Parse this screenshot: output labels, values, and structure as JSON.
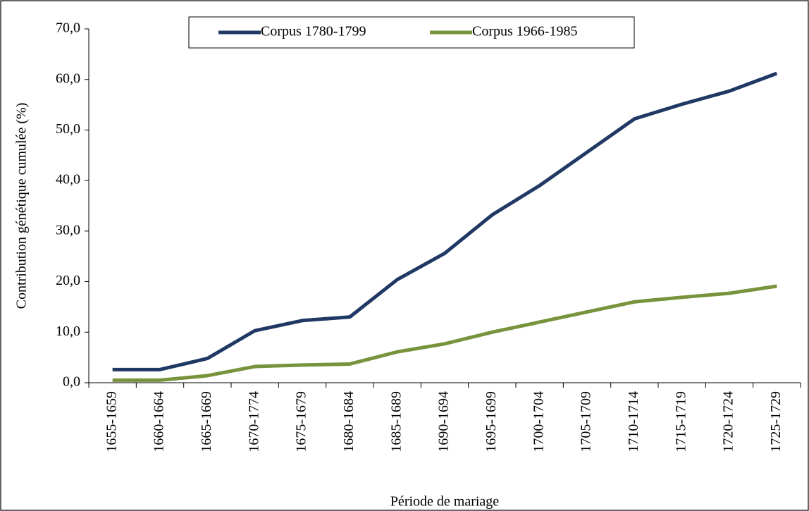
{
  "chart_data": {
    "type": "line",
    "x_label": "Période de mariage",
    "y_label": "Contribution génétique cumulée (%)",
    "categories": [
      "1655-1659",
      "1660-1664",
      "1665-1669",
      "1670-1774",
      "1675-1679",
      "1680-1684",
      "1685-1689",
      "1690-1694",
      "1695-1699",
      "1700-1704",
      "1705-1709",
      "1710-1714",
      "1715-1719",
      "1720-1724",
      "1725-1729"
    ],
    "series": [
      {
        "name": "Corpus 1780-1799",
        "color": "#1f3864",
        "values": [
          2.6,
          2.6,
          4.8,
          10.3,
          12.3,
          13.0,
          20.4,
          25.6,
          33.2,
          39.0,
          45.6,
          52.2,
          55.1,
          57.7,
          61.2
        ]
      },
      {
        "name": "Corpus 1966-1985",
        "color": "#77933c",
        "values": [
          0.5,
          0.5,
          1.4,
          3.2,
          3.5,
          3.7,
          6.1,
          7.7,
          10.0,
          12.0,
          14.0,
          16.0,
          16.9,
          17.7,
          19.1
        ]
      }
    ],
    "ylim": [
      0,
      70
    ],
    "yticks": [
      {
        "value": 0,
        "label": "0,0"
      },
      {
        "value": 10,
        "label": "10,0"
      },
      {
        "value": 20,
        "label": "20,0"
      },
      {
        "value": 30,
        "label": "30,0"
      },
      {
        "value": 40,
        "label": "40,0"
      },
      {
        "value": 50,
        "label": "50,0"
      },
      {
        "value": 60,
        "label": "60,0"
      },
      {
        "value": 70,
        "label": "70,0"
      }
    ],
    "legend": "top"
  }
}
